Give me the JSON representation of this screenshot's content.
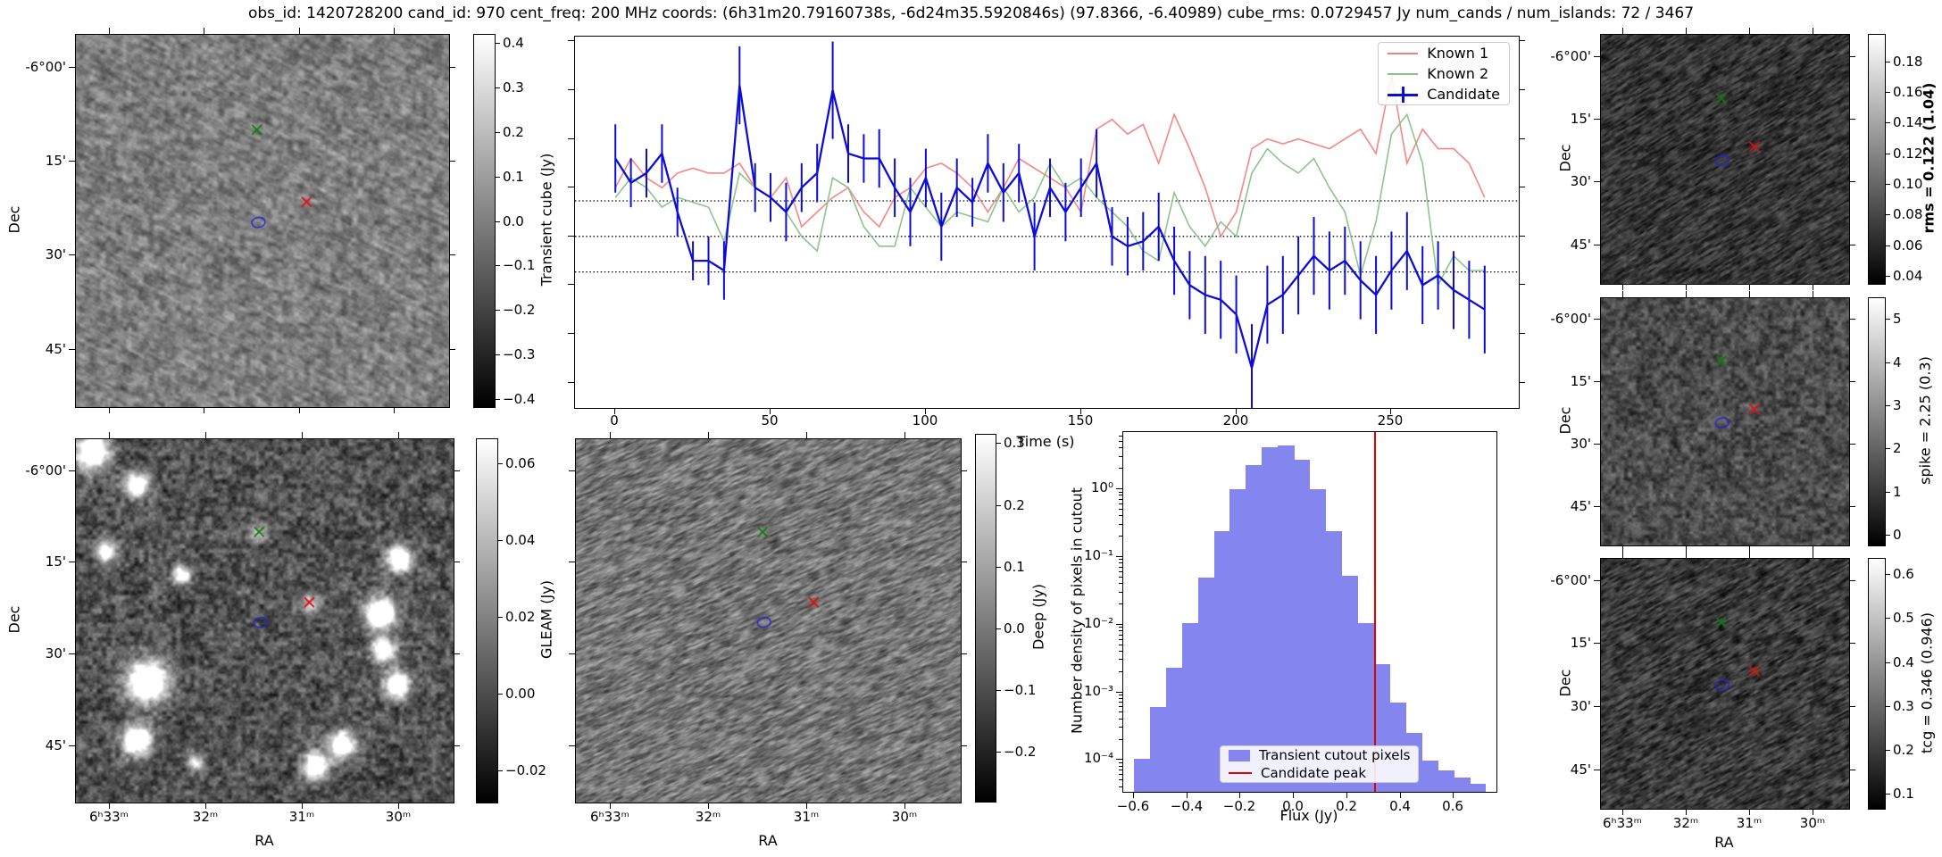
{
  "title": "obs_id: 1420728200 cand_id: 970 cent_freq: 200 MHz coords: (6h31m20.79160738s, -6d24m35.5920846s) (97.8366, -6.40989) cube_rms: 0.0729457 Jy num_cands / num_islands: 72 / 3467",
  "labels": {
    "dec": "Dec",
    "ra": "RA",
    "time": "Time (s)",
    "flux": "Flux (Jy)",
    "hist_y": "Number density of pixels in cutout"
  },
  "image_axes": {
    "dec_ticks": [
      "-6°00'",
      "15'",
      "30'",
      "45'"
    ],
    "ra_ticks": [
      "6ʰ33ᵐ",
      "32ᵐ",
      "31ᵐ",
      "30ᵐ"
    ]
  },
  "colorbars": {
    "transient": {
      "label": "Transient cube (Jy)",
      "ticks": [
        "0.4",
        "0.3",
        "0.2",
        "0.1",
        "0.0",
        "−0.1",
        "−0.2",
        "−0.3",
        "−0.4"
      ],
      "vmin": -0.42,
      "vmax": 0.42
    },
    "gleam": {
      "label": "GLEAM (Jy)",
      "ticks": [
        "0.06",
        "0.04",
        "0.02",
        "0.00",
        "−0.02"
      ],
      "vmin": -0.0285,
      "vmax": 0.0665
    },
    "deep": {
      "label": "Deep (Jy)",
      "ticks": [
        "0.3",
        "0.2",
        "0.1",
        "0.0",
        "−0.1",
        "−0.2"
      ],
      "vmin": -0.282,
      "vmax": 0.315
    },
    "rms": {
      "label": "rms = 0.122 (1.04)",
      "bold": true,
      "ticks": [
        "0.18",
        "0.16",
        "0.14",
        "0.12",
        "0.10",
        "0.08",
        "0.06",
        "0.04"
      ],
      "vmin": 0.0342,
      "vmax": 0.198
    },
    "spike": {
      "label": "spike = 2.25 (0.3)",
      "ticks": [
        "5",
        "4",
        "3",
        "2",
        "1",
        "0"
      ],
      "vmin": -0.27,
      "vmax": 5.5
    },
    "tcg": {
      "label": "tcg = 0.346 (0.946)",
      "ticks": [
        "0.6",
        "0.5",
        "0.4",
        "0.3",
        "0.2",
        "0.1"
      ],
      "vmin": 0.064,
      "vmax": 0.637
    }
  },
  "markers": {
    "known_1": {
      "symbol": "x",
      "color": "#dd1111",
      "fx": 0.618,
      "fy": 0.449
    },
    "known_2": {
      "symbol": "x",
      "color": "#127812",
      "fx": 0.485,
      "fy": 0.255
    },
    "candidate": {
      "symbol": "circle",
      "color": "#2525cc",
      "fx": 0.489,
      "fy": 0.504
    }
  },
  "chart_data": [
    {
      "type": "line",
      "title": "",
      "xlabel": "Time (s)",
      "ylabel": "",
      "xlim": [
        -13,
        291
      ],
      "ylim": [
        -0.352,
        0.41
      ],
      "xticks": [
        0,
        50,
        100,
        150,
        200,
        250
      ],
      "hlines": [
        0.0729457,
        0.0,
        -0.0729457
      ],
      "legend_position": "upper right",
      "x": [
        0,
        5,
        10,
        15,
        20,
        25,
        30,
        35,
        40,
        45,
        50,
        55,
        60,
        65,
        70,
        75,
        80,
        85,
        90,
        95,
        100,
        105,
        110,
        115,
        120,
        125,
        130,
        135,
        140,
        145,
        150,
        155,
        160,
        165,
        170,
        175,
        180,
        185,
        190,
        195,
        200,
        205,
        210,
        215,
        220,
        225,
        230,
        235,
        240,
        245,
        250,
        255,
        260,
        265,
        270,
        275,
        280
      ],
      "series": [
        {
          "name": "Known 1",
          "color": "#f47f7f",
          "values": [
            0.1,
            0.16,
            0.12,
            0.1,
            0.13,
            0.14,
            0.13,
            0.13,
            0.15,
            0.1,
            0.08,
            0.12,
            0.02,
            0.05,
            0.08,
            0.1,
            0.05,
            0.02,
            0.08,
            0.1,
            0.14,
            0.15,
            0.13,
            0.1,
            0.05,
            0.1,
            0.16,
            0.14,
            0.12,
            0.1,
            0.05,
            0.22,
            0.24,
            0.21,
            0.23,
            0.15,
            0.25,
            0.18,
            0.1,
            0.0,
            0.05,
            0.18,
            0.2,
            0.19,
            0.2,
            0.19,
            0.18,
            0.2,
            0.22,
            0.17,
            0.33,
            0.15,
            0.22,
            0.18,
            0.18,
            0.15,
            0.08
          ]
        },
        {
          "name": "Known 2",
          "color": "#85c285",
          "values": [
            0.08,
            0.12,
            0.1,
            0.06,
            0.08,
            0.07,
            0.06,
            -0.01,
            0.13,
            0.1,
            0.08,
            0.05,
            0.0,
            -0.03,
            0.12,
            0.1,
            0.02,
            -0.02,
            -0.02,
            0.1,
            0.06,
            0.02,
            0.05,
            0.04,
            0.03,
            0.1,
            0.05,
            0.08,
            0.15,
            0.1,
            0.12,
            0.08,
            0.05,
            0.02,
            -0.03,
            -0.05,
            0.09,
            0.02,
            -0.02,
            0.03,
            0.0,
            0.13,
            0.18,
            0.15,
            0.13,
            0.16,
            0.1,
            0.05,
            -0.08,
            0.03,
            0.21,
            0.25,
            0.15,
            -0.1,
            -0.04,
            -0.07,
            -0.07
          ]
        },
        {
          "name": "Candidate",
          "color": "#0d0dd6",
          "values": [
            0.16,
            0.11,
            0.13,
            0.17,
            0.05,
            -0.05,
            -0.05,
            -0.07,
            0.31,
            0.1,
            0.08,
            0.05,
            0.1,
            0.13,
            0.3,
            0.17,
            0.16,
            0.16,
            0.1,
            0.05,
            0.12,
            0.02,
            0.1,
            0.07,
            0.15,
            0.09,
            0.13,
            0.0,
            0.1,
            0.05,
            0.1,
            0.15,
            0.0,
            -0.02,
            -0.01,
            0.02,
            -0.05,
            -0.1,
            -0.12,
            -0.13,
            -0.16,
            -0.27,
            -0.14,
            -0.12,
            -0.08,
            -0.04,
            -0.07,
            -0.05,
            -0.09,
            -0.12,
            -0.07,
            -0.03,
            -0.1,
            -0.08,
            -0.11,
            -0.13,
            -0.15
          ],
          "errors": [
            0.07,
            0.05,
            0.05,
            0.06,
            0.05,
            0.04,
            0.05,
            0.06,
            0.08,
            0.05,
            0.05,
            0.06,
            0.05,
            0.06,
            0.1,
            0.06,
            0.05,
            0.06,
            0.06,
            0.07,
            0.06,
            0.07,
            0.06,
            0.05,
            0.06,
            0.06,
            0.06,
            0.07,
            0.06,
            0.06,
            0.06,
            0.07,
            0.06,
            0.06,
            0.06,
            0.07,
            0.07,
            0.07,
            0.08,
            0.08,
            0.08,
            0.09,
            0.08,
            0.08,
            0.08,
            0.08,
            0.08,
            0.07,
            0.08,
            0.08,
            0.08,
            0.08,
            0.08,
            0.07,
            0.08,
            0.08,
            0.09
          ]
        }
      ]
    },
    {
      "type": "bar",
      "title": "",
      "xlabel": "Flux (Jy)",
      "ylabel": "Number density of pixels in cutout",
      "yscale": "log",
      "xlim": [
        -0.64,
        0.76
      ],
      "ylim": [
        3.4e-05,
        7.0
      ],
      "xticks": [
        -0.6,
        -0.4,
        -0.2,
        0.0,
        0.2,
        0.4,
        0.6
      ],
      "ytick_labels": [
        "10⁰",
        "10⁻¹",
        "10⁻²",
        "10⁻³",
        "10⁻⁴"
      ],
      "bar_color": "#8585f0",
      "bin_edges": [
        -0.6,
        -0.54,
        -0.48,
        -0.42,
        -0.36,
        -0.3,
        -0.24,
        -0.18,
        -0.12,
        -0.06,
        0.0,
        0.06,
        0.12,
        0.18,
        0.24,
        0.3,
        0.36,
        0.42,
        0.48,
        0.54,
        0.6,
        0.66,
        0.72
      ],
      "densities": [
        0.000105,
        0.0006,
        0.0023,
        0.0105,
        0.05,
        0.24,
        1.0,
        2.3,
        4.2,
        4.4,
        2.7,
        1.0,
        0.24,
        0.053,
        0.0105,
        0.0026,
        0.0007,
        0.00025,
        0.0001,
        7e-05,
        5.6e-05,
        4.5e-05
      ],
      "vline": {
        "x": 0.3,
        "color": "#e50000"
      },
      "legend": [
        "Transient cutout pixels",
        "Candidate peak"
      ]
    }
  ]
}
